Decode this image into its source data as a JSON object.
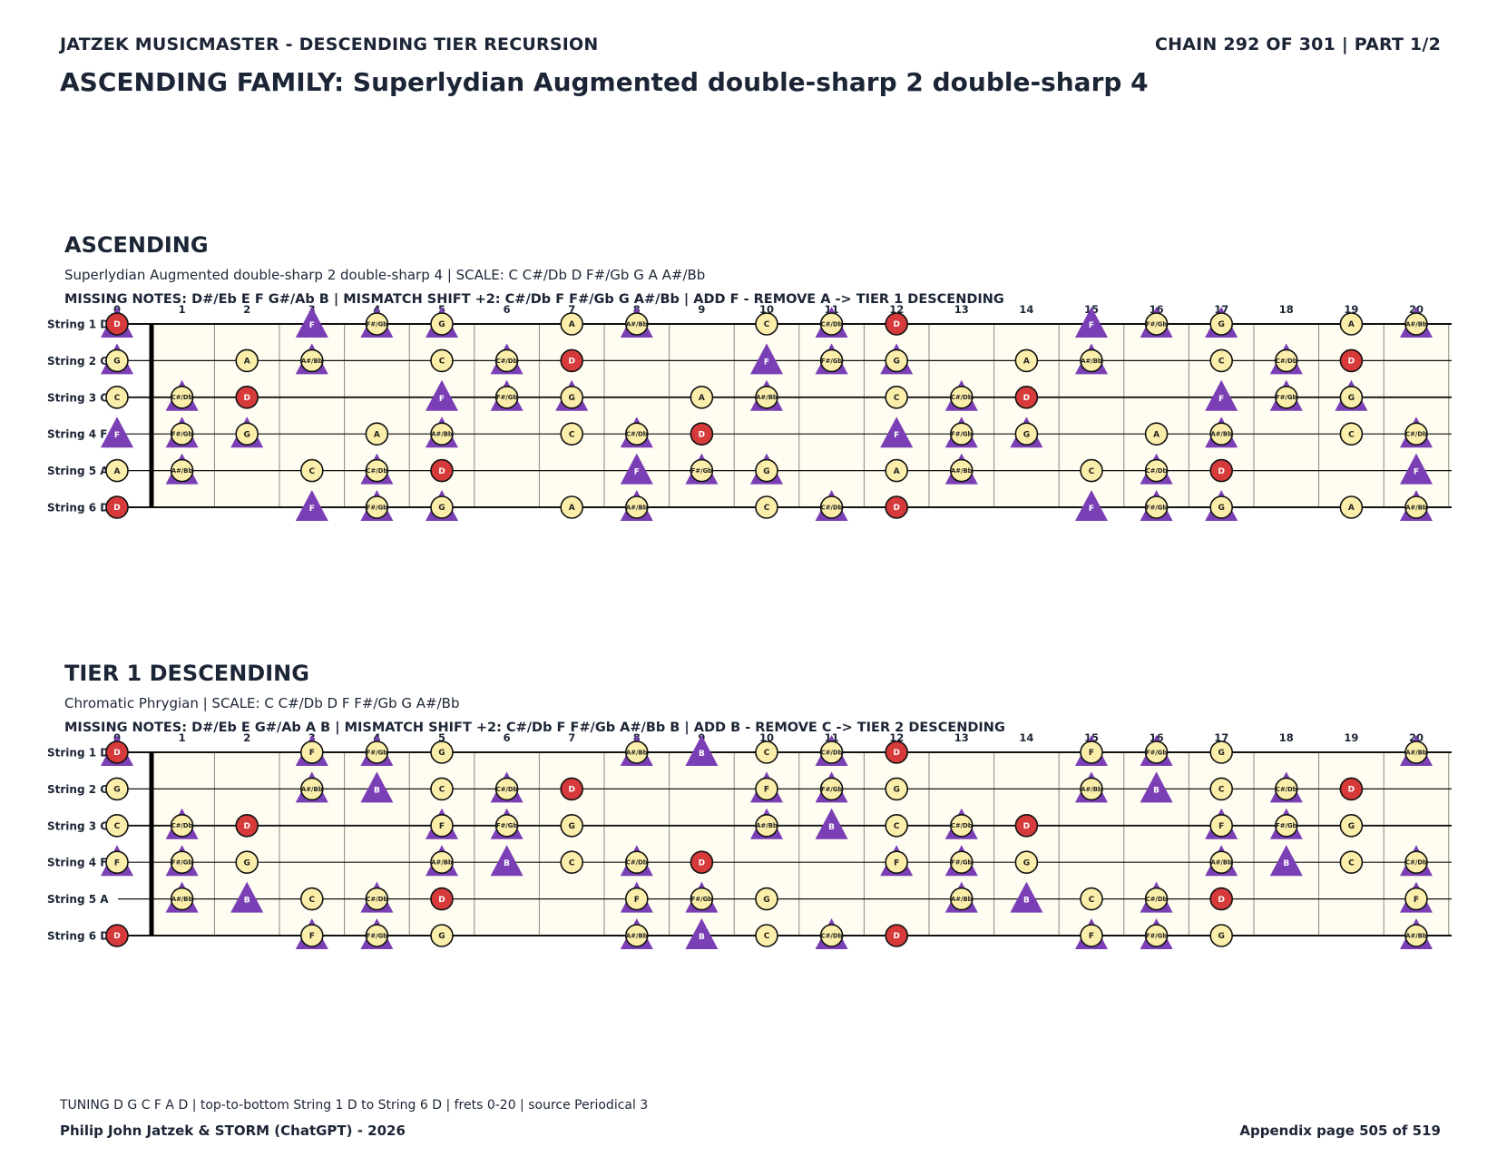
{
  "header": {
    "left": "JATZEK MUSICMASTER - DESCENDING TIER RECURSION",
    "right": "CHAIN 292 OF 301  |  PART 1/2"
  },
  "family_title": "ASCENDING FAMILY: Superlydian Augmented double-sharp 2 double-sharp 4",
  "fretboard": {
    "string_labels": [
      "String 1 D",
      "String 2 G",
      "String 3 C",
      "String 4 F",
      "String 5 A",
      "String 6 D"
    ],
    "fret_numbers": [
      "0",
      "1",
      "2",
      "3",
      "4",
      "5",
      "6",
      "7",
      "8",
      "9",
      "10",
      "11",
      "12",
      "13",
      "14",
      "15",
      "16",
      "17",
      "18",
      "19",
      "20"
    ],
    "colors": {
      "note_fill": "#fbeeaa",
      "root_fill": "#d63a3a",
      "triangle": "#7a3fb5",
      "board": "#fffdf2"
    }
  },
  "sections": [
    {
      "title": "ASCENDING",
      "subtitle": "Superlydian Augmented double-sharp 2 double-sharp 4  |  SCALE: C C#/Db D F#/Gb G A A#/Bb",
      "info": "MISSING NOTES: D#/Eb E F G#/Ab B  |  MISMATCH SHIFT +2: C#/Db F F#/Gb G A#/Bb  |  ADD F - REMOVE A -> TIER 1 DESCENDING",
      "marks": [
        [
          [
            0,
            "D",
            "root",
            1
          ],
          [
            3,
            "F",
            "tri",
            0
          ],
          [
            4,
            "F#/Gb",
            "note",
            1
          ],
          [
            5,
            "G",
            "note",
            1
          ],
          [
            7,
            "A",
            "note",
            0
          ],
          [
            8,
            "A#/Bb",
            "note",
            1
          ],
          [
            10,
            "C",
            "note",
            0
          ],
          [
            11,
            "C#/Db",
            "note",
            1
          ],
          [
            12,
            "D",
            "root",
            0
          ],
          [
            15,
            "F",
            "tri",
            0
          ],
          [
            16,
            "F#/Gb",
            "note",
            1
          ],
          [
            17,
            "G",
            "note",
            1
          ],
          [
            19,
            "A",
            "note",
            0
          ],
          [
            20,
            "A#/Bb",
            "note",
            1
          ]
        ],
        [
          [
            0,
            "G",
            "note",
            1
          ],
          [
            2,
            "A",
            "note",
            0
          ],
          [
            3,
            "A#/Bb",
            "note",
            1
          ],
          [
            5,
            "C",
            "note",
            0
          ],
          [
            6,
            "C#/Db",
            "note",
            1
          ],
          [
            7,
            "D",
            "root",
            0
          ],
          [
            10,
            "F",
            "tri",
            0
          ],
          [
            11,
            "F#/Gb",
            "note",
            1
          ],
          [
            12,
            "G",
            "note",
            1
          ],
          [
            14,
            "A",
            "note",
            0
          ],
          [
            15,
            "A#/Bb",
            "note",
            1
          ],
          [
            17,
            "C",
            "note",
            0
          ],
          [
            18,
            "C#/Db",
            "note",
            1
          ],
          [
            19,
            "D",
            "root",
            0
          ]
        ],
        [
          [
            0,
            "C",
            "note",
            0
          ],
          [
            1,
            "C#/Db",
            "note",
            1
          ],
          [
            2,
            "D",
            "root",
            0
          ],
          [
            5,
            "F",
            "tri",
            0
          ],
          [
            6,
            "F#/Gb",
            "note",
            1
          ],
          [
            7,
            "G",
            "note",
            1
          ],
          [
            9,
            "A",
            "note",
            0
          ],
          [
            10,
            "A#/Bb",
            "note",
            1
          ],
          [
            12,
            "C",
            "note",
            0
          ],
          [
            13,
            "C#/Db",
            "note",
            1
          ],
          [
            14,
            "D",
            "root",
            0
          ],
          [
            17,
            "F",
            "tri",
            0
          ],
          [
            18,
            "F#/Gb",
            "note",
            1
          ],
          [
            19,
            "G",
            "note",
            1
          ]
        ],
        [
          [
            0,
            "F",
            "tri",
            0
          ],
          [
            1,
            "F#/Gb",
            "note",
            1
          ],
          [
            2,
            "G",
            "note",
            1
          ],
          [
            4,
            "A",
            "note",
            0
          ],
          [
            5,
            "A#/Bb",
            "note",
            1
          ],
          [
            7,
            "C",
            "note",
            0
          ],
          [
            8,
            "C#/Db",
            "note",
            1
          ],
          [
            9,
            "D",
            "root",
            0
          ],
          [
            12,
            "F",
            "tri",
            0
          ],
          [
            13,
            "F#/Gb",
            "note",
            1
          ],
          [
            14,
            "G",
            "note",
            1
          ],
          [
            16,
            "A",
            "note",
            0
          ],
          [
            17,
            "A#/Bb",
            "note",
            1
          ],
          [
            19,
            "C",
            "note",
            0
          ],
          [
            20,
            "C#/Db",
            "note",
            1
          ]
        ],
        [
          [
            0,
            "A",
            "note",
            0
          ],
          [
            1,
            "A#/Bb",
            "note",
            1
          ],
          [
            3,
            "C",
            "note",
            0
          ],
          [
            4,
            "C#/Db",
            "note",
            1
          ],
          [
            5,
            "D",
            "root",
            0
          ],
          [
            8,
            "F",
            "tri",
            0
          ],
          [
            9,
            "F#/Gb",
            "note",
            1
          ],
          [
            10,
            "G",
            "note",
            1
          ],
          [
            12,
            "A",
            "note",
            0
          ],
          [
            13,
            "A#/Bb",
            "note",
            1
          ],
          [
            15,
            "C",
            "note",
            0
          ],
          [
            16,
            "C#/Db",
            "note",
            1
          ],
          [
            17,
            "D",
            "root",
            0
          ],
          [
            20,
            "F",
            "tri",
            0
          ]
        ],
        [
          [
            0,
            "D",
            "root",
            0
          ],
          [
            3,
            "F",
            "tri",
            0
          ],
          [
            4,
            "F#/Gb",
            "note",
            1
          ],
          [
            5,
            "G",
            "note",
            1
          ],
          [
            7,
            "A",
            "note",
            0
          ],
          [
            8,
            "A#/Bb",
            "note",
            1
          ],
          [
            10,
            "C",
            "note",
            0
          ],
          [
            11,
            "C#/Db",
            "note",
            1
          ],
          [
            12,
            "D",
            "root",
            0
          ],
          [
            15,
            "F",
            "tri",
            0
          ],
          [
            16,
            "F#/Gb",
            "note",
            1
          ],
          [
            17,
            "G",
            "note",
            1
          ],
          [
            19,
            "A",
            "note",
            0
          ],
          [
            20,
            "A#/Bb",
            "note",
            1
          ]
        ]
      ]
    },
    {
      "title": "TIER 1 DESCENDING",
      "subtitle": "Chromatic Phrygian  |  SCALE: C C#/Db D F F#/Gb G A#/Bb",
      "info": "MISSING NOTES: D#/Eb E G#/Ab A B  |  MISMATCH SHIFT +2: C#/Db F F#/Gb A#/Bb B  |  ADD B - REMOVE C -> TIER 2 DESCENDING",
      "marks": [
        [
          [
            0,
            "D",
            "root",
            1
          ],
          [
            3,
            "F",
            "note",
            1
          ],
          [
            4,
            "F#/Gb",
            "note",
            1
          ],
          [
            5,
            "G",
            "note",
            0
          ],
          [
            8,
            "A#/Bb",
            "note",
            1
          ],
          [
            9,
            "B",
            "tri",
            0
          ],
          [
            10,
            "C",
            "note",
            0
          ],
          [
            11,
            "C#/Db",
            "note",
            1
          ],
          [
            12,
            "D",
            "root",
            0
          ],
          [
            15,
            "F",
            "note",
            1
          ],
          [
            16,
            "F#/Gb",
            "note",
            1
          ],
          [
            17,
            "G",
            "note",
            0
          ],
          [
            20,
            "A#/Bb",
            "note",
            1
          ]
        ],
        [
          [
            0,
            "G",
            "note",
            0
          ],
          [
            3,
            "A#/Bb",
            "note",
            1
          ],
          [
            4,
            "B",
            "tri",
            0
          ],
          [
            5,
            "C",
            "note",
            0
          ],
          [
            6,
            "C#/Db",
            "note",
            1
          ],
          [
            7,
            "D",
            "root",
            0
          ],
          [
            10,
            "F",
            "note",
            1
          ],
          [
            11,
            "F#/Gb",
            "note",
            1
          ],
          [
            12,
            "G",
            "note",
            0
          ],
          [
            15,
            "A#/Bb",
            "note",
            1
          ],
          [
            16,
            "B",
            "tri",
            0
          ],
          [
            17,
            "C",
            "note",
            0
          ],
          [
            18,
            "C#/Db",
            "note",
            1
          ],
          [
            19,
            "D",
            "root",
            0
          ]
        ],
        [
          [
            0,
            "C",
            "note",
            0
          ],
          [
            1,
            "C#/Db",
            "note",
            1
          ],
          [
            2,
            "D",
            "root",
            0
          ],
          [
            5,
            "F",
            "note",
            1
          ],
          [
            6,
            "F#/Gb",
            "note",
            1
          ],
          [
            7,
            "G",
            "note",
            0
          ],
          [
            10,
            "A#/Bb",
            "note",
            1
          ],
          [
            11,
            "B",
            "tri",
            0
          ],
          [
            12,
            "C",
            "note",
            0
          ],
          [
            13,
            "C#/Db",
            "note",
            1
          ],
          [
            14,
            "D",
            "root",
            0
          ],
          [
            17,
            "F",
            "note",
            1
          ],
          [
            18,
            "F#/Gb",
            "note",
            1
          ],
          [
            19,
            "G",
            "note",
            0
          ]
        ],
        [
          [
            0,
            "F",
            "note",
            1
          ],
          [
            1,
            "F#/Gb",
            "note",
            1
          ],
          [
            2,
            "G",
            "note",
            0
          ],
          [
            5,
            "A#/Bb",
            "note",
            1
          ],
          [
            6,
            "B",
            "tri",
            0
          ],
          [
            7,
            "C",
            "note",
            0
          ],
          [
            8,
            "C#/Db",
            "note",
            1
          ],
          [
            9,
            "D",
            "root",
            0
          ],
          [
            12,
            "F",
            "note",
            1
          ],
          [
            13,
            "F#/Gb",
            "note",
            1
          ],
          [
            14,
            "G",
            "note",
            0
          ],
          [
            17,
            "A#/Bb",
            "note",
            1
          ],
          [
            18,
            "B",
            "tri",
            0
          ],
          [
            19,
            "C",
            "note",
            0
          ],
          [
            20,
            "C#/Db",
            "note",
            1
          ]
        ],
        [
          [
            1,
            "A#/Bb",
            "note",
            1
          ],
          [
            2,
            "B",
            "tri",
            0
          ],
          [
            3,
            "C",
            "note",
            0
          ],
          [
            4,
            "C#/Db",
            "note",
            1
          ],
          [
            5,
            "D",
            "root",
            0
          ],
          [
            8,
            "F",
            "note",
            1
          ],
          [
            9,
            "F#/Gb",
            "note",
            1
          ],
          [
            10,
            "G",
            "note",
            0
          ],
          [
            13,
            "A#/Bb",
            "note",
            1
          ],
          [
            14,
            "B",
            "tri",
            0
          ],
          [
            15,
            "C",
            "note",
            0
          ],
          [
            16,
            "C#/Db",
            "note",
            1
          ],
          [
            17,
            "D",
            "root",
            0
          ],
          [
            20,
            "F",
            "note",
            1
          ]
        ],
        [
          [
            0,
            "D",
            "root",
            0
          ],
          [
            3,
            "F",
            "note",
            1
          ],
          [
            4,
            "F#/Gb",
            "note",
            1
          ],
          [
            5,
            "G",
            "note",
            0
          ],
          [
            8,
            "A#/Bb",
            "note",
            1
          ],
          [
            9,
            "B",
            "tri",
            0
          ],
          [
            10,
            "C",
            "note",
            0
          ],
          [
            11,
            "C#/Db",
            "note",
            1
          ],
          [
            12,
            "D",
            "root",
            0
          ],
          [
            15,
            "F",
            "note",
            1
          ],
          [
            16,
            "F#/Gb",
            "note",
            1
          ],
          [
            17,
            "G",
            "note",
            0
          ],
          [
            20,
            "A#/Bb",
            "note",
            1
          ]
        ]
      ]
    }
  ],
  "footer": {
    "tuning": "TUNING D G C F A D | top-to-bottom String 1 D to String 6 D | frets 0-20 | source Periodical 3",
    "credit": "Philip John Jatzek & STORM (ChatGPT) - 2026",
    "page": "Appendix page 505 of 519"
  }
}
